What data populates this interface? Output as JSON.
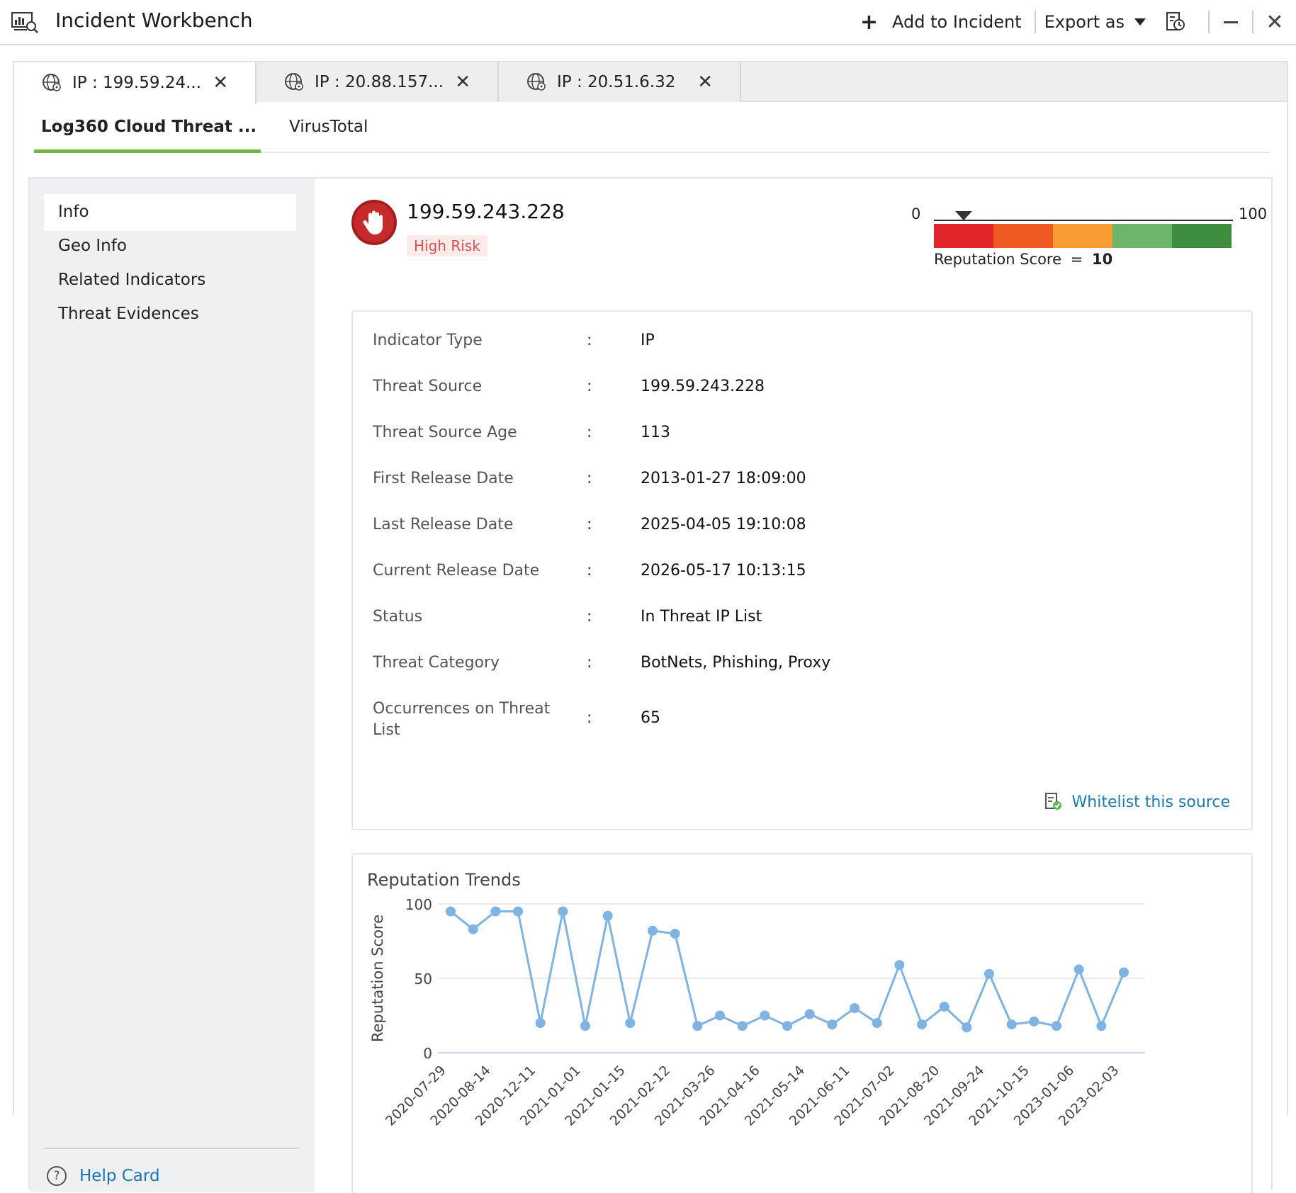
{
  "app": {
    "title": "Incident Workbench",
    "add_to_incident": "Add to Incident",
    "export_as": "Export as"
  },
  "ip_tabs": [
    {
      "label": "IP : 199.59.24...",
      "active": true
    },
    {
      "label": "IP : 20.88.157...",
      "active": false
    },
    {
      "label": "IP : 20.51.6.32",
      "active": false
    }
  ],
  "sub_tabs": [
    {
      "label": "Log360 Cloud Threat ...",
      "active": true
    },
    {
      "label": "VirusTotal",
      "active": false
    }
  ],
  "sidebar": {
    "items": [
      {
        "label": "Info",
        "active": true
      },
      {
        "label": "Geo Info",
        "active": false
      },
      {
        "label": "Related Indicators",
        "active": false
      },
      {
        "label": "Threat Evidences",
        "active": false
      }
    ],
    "help": "Help Card"
  },
  "indicator": {
    "ip": "199.59.243.228",
    "risk": "High Risk",
    "reputation": {
      "min": "0",
      "max": "100",
      "label": "Reputation Score",
      "equals": "=",
      "score": "10",
      "colors": [
        "#e0262a",
        "#ef5a24",
        "#f89c33",
        "#6db56a",
        "#3f8d3f"
      ]
    }
  },
  "details": [
    {
      "key": "Indicator Type",
      "value": "IP"
    },
    {
      "key": "Threat Source",
      "value": "199.59.243.228"
    },
    {
      "key": "Threat Source Age",
      "value": "113"
    },
    {
      "key": "First Release Date",
      "value": "2013-01-27 18:09:00"
    },
    {
      "key": "Last Release Date",
      "value": "2025-04-05 19:10:08"
    },
    {
      "key": "Current Release Date",
      "value": "2026-05-17 10:13:15"
    },
    {
      "key": "Status",
      "value": "In Threat IP List"
    },
    {
      "key": "Threat Category",
      "value": "BotNets, Phishing, Proxy"
    },
    {
      "key": "Occurrences on Threat List",
      "value": "65"
    }
  ],
  "colon": ":",
  "whitelist": "Whitelist this source",
  "chart_data": {
    "type": "line",
    "title": "Reputation Trends",
    "ylabel": "Reputation Score",
    "xlabel": "",
    "ylim": [
      0,
      100
    ],
    "yticks": [
      0,
      50,
      100
    ],
    "x_tick_labels": [
      "2020-07-29",
      "2020-08-14",
      "2020-12-11",
      "2021-01-01",
      "2021-01-15",
      "2021-02-12",
      "2021-03-26",
      "2021-04-16",
      "2021-05-14",
      "2021-06-11",
      "2021-07-02",
      "2021-08-20",
      "2021-09-24",
      "2021-10-15",
      "2023-01-06",
      "2023-02-03"
    ],
    "values": [
      95,
      83,
      95,
      95,
      20,
      95,
      18,
      92,
      20,
      82,
      80,
      18,
      25,
      18,
      25,
      18,
      26,
      19,
      30,
      20,
      59,
      19,
      31,
      17,
      53,
      19,
      21,
      18,
      56,
      18,
      54
    ],
    "color": "#7eb3e3",
    "grid": true
  }
}
